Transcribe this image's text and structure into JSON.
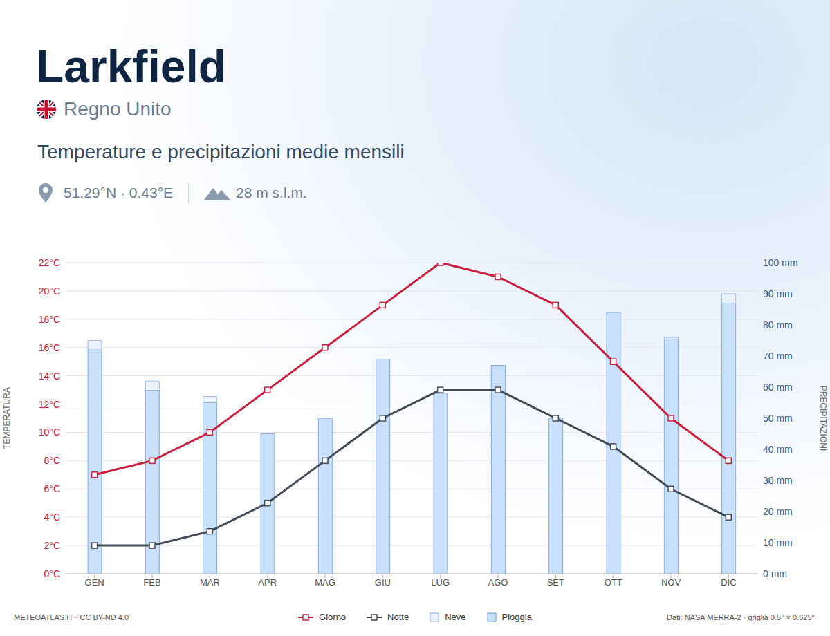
{
  "header": {
    "title": "Larkfield",
    "country": "Regno Unito",
    "subtitle": "Temperature e precipitazioni medie mensili",
    "coordinates": "51.29°N · 0.43°E",
    "elevation": "28 m s.l.m."
  },
  "footer": {
    "source": "METEOATLAS.IT · CC BY-ND 4.0",
    "data": "Dati: NASA MERRA-2 · griglia 0.5° × 0.625°"
  },
  "chart_data": {
    "type": "combo",
    "categories": [
      "GEN",
      "FEB",
      "MAR",
      "APR",
      "MAG",
      "GIU",
      "LUG",
      "AGO",
      "SET",
      "OTT",
      "NOV",
      "DIC"
    ],
    "y_label": "TEMPERATURA",
    "y2_label": "PRECIPITAZIONI",
    "ylim": [
      0,
      22
    ],
    "yticks": [
      {
        "value": 0,
        "label": "0°C"
      },
      {
        "value": 2,
        "label": "2°C"
      },
      {
        "value": 4,
        "label": "4°C"
      },
      {
        "value": 6,
        "label": "6°C"
      },
      {
        "value": 8,
        "label": "8°C"
      },
      {
        "value": 10,
        "label": "10°C"
      },
      {
        "value": 12,
        "label": "12°C"
      },
      {
        "value": 14,
        "label": "14°C"
      },
      {
        "value": 16,
        "label": "16°C"
      },
      {
        "value": 18,
        "label": "18°C"
      },
      {
        "value": 20,
        "label": "20°C"
      },
      {
        "value": 22,
        "label": "22°C"
      }
    ],
    "y2lim": [
      0,
      100
    ],
    "y2ticks": [
      {
        "value": 0,
        "label": "0 mm"
      },
      {
        "value": 10,
        "label": "10 mm"
      },
      {
        "value": 20,
        "label": "20 mm"
      },
      {
        "value": 30,
        "label": "30 mm"
      },
      {
        "value": 40,
        "label": "40 mm"
      },
      {
        "value": 50,
        "label": "50 mm"
      },
      {
        "value": 60,
        "label": "60 mm"
      },
      {
        "value": 70,
        "label": "70 mm"
      },
      {
        "value": 80,
        "label": "80 mm"
      },
      {
        "value": 90,
        "label": "90 mm"
      },
      {
        "value": 100,
        "label": "100 mm"
      }
    ],
    "grid": true,
    "stacked": true,
    "legend": "bottom",
    "series": [
      {
        "name": "Giorno",
        "type": "line",
        "color": "#c8203f",
        "marker": "square",
        "values": [
          7,
          8,
          10,
          13,
          16,
          19,
          22,
          21,
          19,
          15,
          11,
          8
        ]
      },
      {
        "name": "Notte",
        "type": "line",
        "color": "#444a55",
        "marker": "square",
        "values": [
          2,
          2,
          3,
          5,
          8,
          11,
          13,
          13,
          11,
          9,
          6,
          4
        ]
      },
      {
        "name": "Neve",
        "type": "bar",
        "axis": "y2",
        "color": "#eaf3fd",
        "values": [
          3,
          3,
          2,
          0,
          0,
          0,
          0,
          0,
          0,
          0,
          0.5,
          3
        ]
      },
      {
        "name": "Pioggia",
        "type": "bar",
        "axis": "y2",
        "color": "#c9e0fa",
        "values": [
          72,
          59,
          55,
          45,
          50,
          69,
          58,
          67,
          50,
          84,
          75.5,
          87
        ]
      }
    ]
  }
}
